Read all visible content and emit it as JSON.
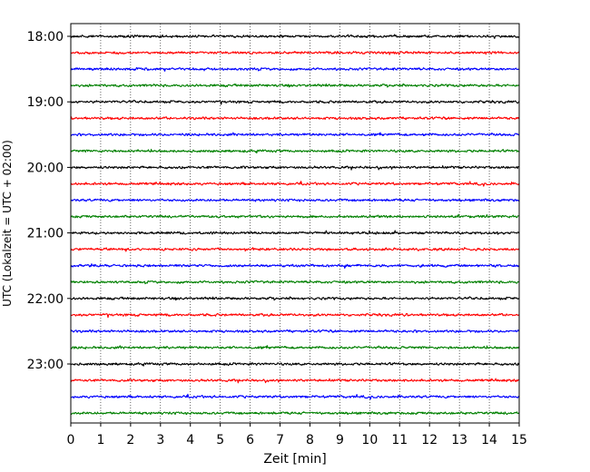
{
  "chart_data": {
    "type": "line",
    "title": "",
    "xlabel": "Zeit  [min]",
    "ylabel": "UTC (Lokalzeit = UTC + 02:00)",
    "xlim": [
      0,
      15
    ],
    "x_ticks": [
      "0",
      "1",
      "2",
      "3",
      "4",
      "5",
      "6",
      "7",
      "8",
      "9",
      "10",
      "11",
      "12",
      "13",
      "14",
      "15"
    ],
    "y_ticks": [
      "18:00",
      "19:00",
      "20:00",
      "21:00",
      "22:00",
      "23:00"
    ],
    "grid": "vertical-dotted",
    "trace_interval_minutes": 15,
    "trace_start": "18:00",
    "trace_count": 24,
    "trace_colors": [
      "#000000",
      "#ff0000",
      "#0000ff",
      "#008000"
    ],
    "legend": "none"
  }
}
